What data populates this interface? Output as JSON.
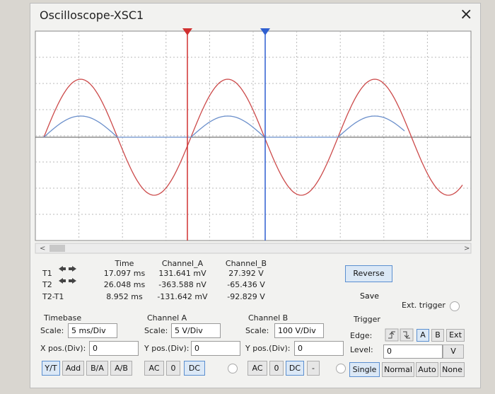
{
  "window": {
    "title": "Oscilloscope-XSC1",
    "close": "×"
  },
  "readout": {
    "headers": [
      "Time",
      "Channel_A",
      "Channel_B"
    ],
    "rows": [
      [
        "T1",
        "17.097 ms",
        "131.641 mV",
        "27.392 V"
      ],
      [
        "T2",
        "26.048 ms",
        "-363.588 nV",
        "-65.436 V"
      ],
      [
        "T2-T1",
        "8.952 ms",
        "-131.642 mV",
        "-92.829 V"
      ]
    ]
  },
  "buttons": {
    "reverse": "Reverse",
    "save": "Save",
    "ext_trigger": "Ext. trigger"
  },
  "timebase": {
    "title": "Timebase",
    "scale_label": "Scale:",
    "scale": "5 ms/Div",
    "xpos_label": "X pos.(Div):",
    "xpos": "0",
    "modes": [
      "Y/T",
      "Add",
      "B/A",
      "A/B"
    ]
  },
  "channel_a": {
    "title": "Channel A",
    "scale_label": "Scale:",
    "scale": "5 V/Div",
    "ypos_label": "Y pos.(Div):",
    "ypos": "0",
    "coupling": [
      "AC",
      "0",
      "DC"
    ]
  },
  "channel_b": {
    "title": "Channel B",
    "scale_label": "Scale:",
    "scale": "100 V/Div",
    "ypos_label": "Y pos.(Div):",
    "ypos": "0",
    "coupling": [
      "AC",
      "0",
      "DC",
      "-"
    ]
  },
  "trigger": {
    "title": "Trigger",
    "edge_label": "Edge:",
    "edge_sources": [
      "A",
      "B",
      "Ext"
    ],
    "level_label": "Level:",
    "level": "0",
    "level_unit": "V",
    "modes": [
      "Single",
      "Normal",
      "Auto",
      "None"
    ]
  }
}
